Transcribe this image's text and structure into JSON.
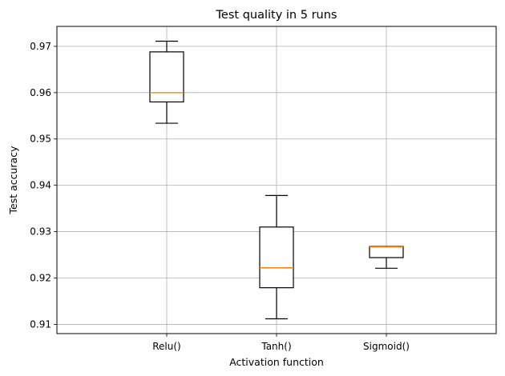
{
  "chart_data": {
    "type": "boxplot",
    "title": "Test quality in 5 runs",
    "xlabel": "Activation function",
    "ylabel": "Test accuracy",
    "categories": [
      "Relu()",
      "Tanh()",
      "Sigmoid()"
    ],
    "boxes": [
      {
        "category": "Relu()",
        "whislo": 0.9534,
        "q1": 0.958,
        "med": 0.96,
        "q3": 0.9688,
        "whishi": 0.9711
      },
      {
        "category": "Tanh()",
        "whislo": 0.9112,
        "q1": 0.9179,
        "med": 0.9222,
        "q3": 0.931,
        "whishi": 0.9378
      },
      {
        "category": "Sigmoid()",
        "whislo": 0.9221,
        "q1": 0.9244,
        "med": 0.9267,
        "q3": 0.9268,
        "whishi": 0.9268
      }
    ],
    "yticks": [
      "0.91",
      "0.92",
      "0.93",
      "0.94",
      "0.95",
      "0.96",
      "0.97"
    ],
    "ylim": [
      0.908,
      0.9743
    ],
    "grid": true,
    "colors": {
      "box": "#000000",
      "median": "#ff7f0e",
      "grid": "#b0b0b0"
    }
  }
}
